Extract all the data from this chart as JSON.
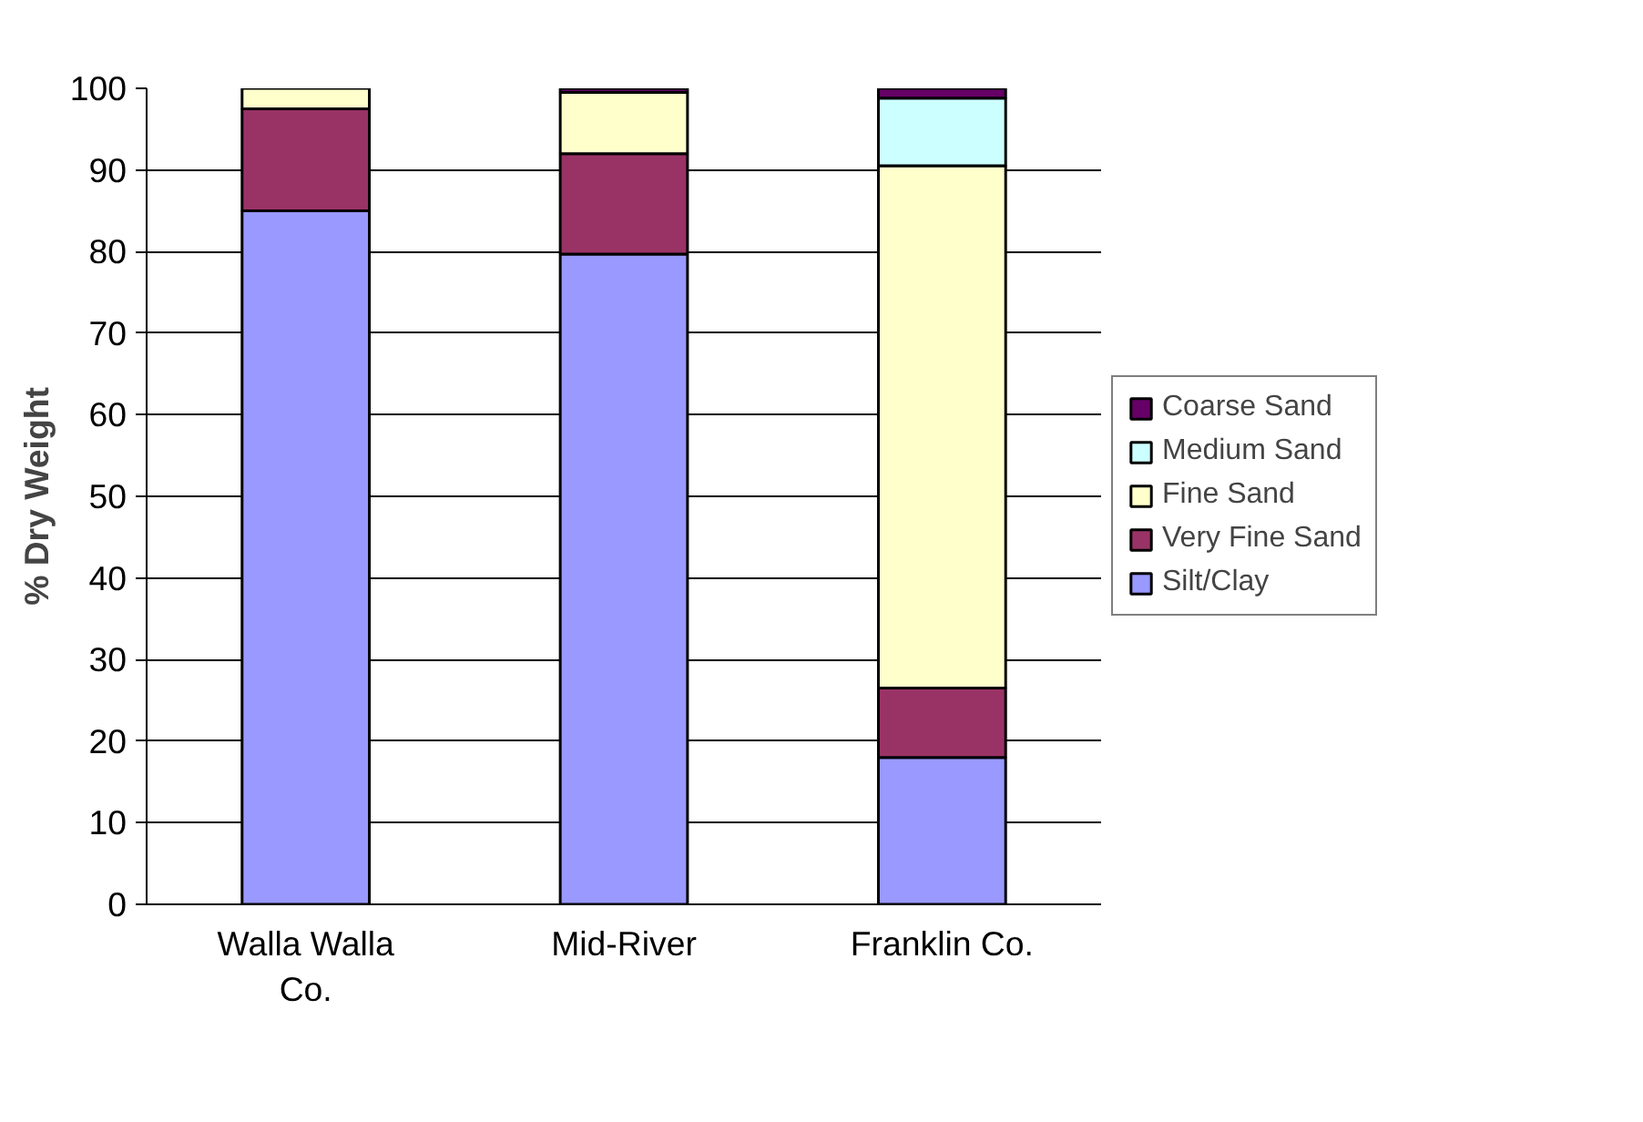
{
  "chart_data": {
    "type": "bar",
    "stacked": true,
    "ylabel": "% Dry Weight",
    "categories": [
      "Walla Walla Co.",
      "Mid-River",
      "Franklin Co."
    ],
    "series": [
      {
        "name": "Silt/Clay",
        "color": "#9999ff",
        "values": [
          85,
          79.7,
          18
        ]
      },
      {
        "name": "Very Fine Sand",
        "color": "#993366",
        "values": [
          12.5,
          12.3,
          8.5
        ]
      },
      {
        "name": "Fine Sand",
        "color": "#ffffcc",
        "values": [
          2.5,
          7.5,
          64
        ]
      },
      {
        "name": "Medium Sand",
        "color": "#ccffff",
        "values": [
          0,
          0,
          8.3
        ]
      },
      {
        "name": "Coarse Sand",
        "color": "#660066",
        "values": [
          0,
          0.5,
          1.2
        ]
      }
    ],
    "ylim": [
      0,
      100
    ],
    "yticks": [
      0,
      10,
      20,
      30,
      40,
      50,
      60,
      70,
      80,
      90,
      100
    ],
    "grid": "y",
    "legend": "right"
  }
}
